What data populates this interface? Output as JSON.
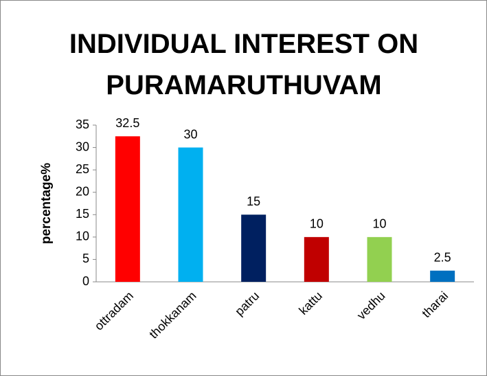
{
  "chart_data": {
    "type": "bar",
    "title": "INDIVIDUAL INTEREST ON PURAMARUTHUVAM",
    "y_label": "percentage%",
    "categories": [
      "ottradam",
      "thokkanam",
      "patru",
      "kattu",
      "vedhu",
      "tharai"
    ],
    "values": [
      32.5,
      30,
      15,
      10,
      10,
      2.5
    ],
    "colors": [
      "#ff0000",
      "#00b0f0",
      "#002060",
      "#c00000",
      "#92d050",
      "#0070c0"
    ],
    "ylim": [
      0,
      35
    ],
    "yticks": [
      0,
      5,
      10,
      15,
      20,
      25,
      30,
      35
    ],
    "grid": false
  }
}
